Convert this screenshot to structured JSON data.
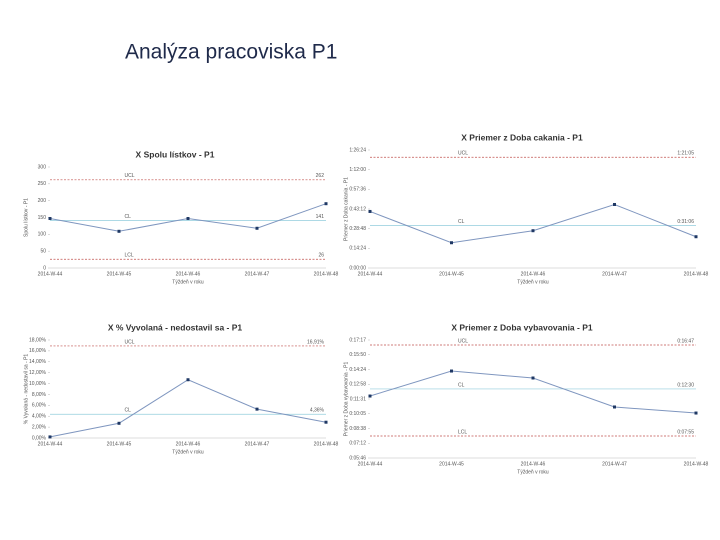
{
  "title": "Analýza pracoviska P1",
  "chart_data": [
    {
      "type": "line",
      "title": "X Spolu lístkov - P1",
      "x_label": "Týždeň v roku",
      "y_label": "Spolu lístkov - P1",
      "categories": [
        "2014-W-44",
        "2014-W-45",
        "2014-W-46",
        "2014-W-47",
        "2014-W-48"
      ],
      "values": [
        147,
        109,
        147,
        118,
        191
      ],
      "color": "#7f96bf",
      "marker_color": "#1f3864",
      "ylim": [
        0,
        300
      ],
      "yticks": [
        0,
        50,
        100,
        150,
        200,
        250,
        300
      ],
      "limits": [
        {
          "label": "UCL",
          "value": 262,
          "value_label": "262",
          "color": "#c0504d"
        },
        {
          "label": "CL",
          "value": 141,
          "value_label": "141",
          "color": "#92cddc"
        },
        {
          "label": "LCL",
          "value": 26,
          "value_label": "26",
          "color": "#c0504d"
        }
      ]
    },
    {
      "type": "line",
      "title": "X Priemer z Doba cakania - P1",
      "x_label": "Týždeň v roku",
      "y_label": "Priemer z Doba cakania - P1",
      "categories": [
        "2014-W-44",
        "2014-W-45",
        "2014-W-46",
        "2014-W-47",
        "2014-W-48"
      ],
      "values": [
        41.4,
        18.5,
        27.3,
        46.5,
        22.9
      ],
      "color": "#7f96bf",
      "marker_color": "#1f3864",
      "ylim": [
        0,
        86.4
      ],
      "yticks": [
        {
          "value": 0,
          "label": "0:00:00"
        },
        {
          "value": 14.4,
          "label": "0:14:24"
        },
        {
          "value": 28.8,
          "label": "0:28:48"
        },
        {
          "value": 43.2,
          "label": "0:43:12"
        },
        {
          "value": 57.6,
          "label": "0:57:36"
        },
        {
          "value": 72,
          "label": "1:12:00"
        },
        {
          "value": 86.4,
          "label": "1:26:24"
        }
      ],
      "limits": [
        {
          "label": "UCL",
          "value": 81.08,
          "value_label": "1:21:05",
          "color": "#c0504d"
        },
        {
          "label": "CL",
          "value": 31.1,
          "value_label": "0:31:06",
          "color": "#92cddc"
        }
      ]
    },
    {
      "type": "line",
      "title": "X % Vyvolaná - nedostavil sa - P1",
      "x_label": "Týždeň v roku",
      "y_label": "% Vyvolaná - nedostavil sa - P1",
      "categories": [
        "2014-W-44",
        "2014-W-45",
        "2014-W-46",
        "2014-W-47",
        "2014-W-48"
      ],
      "values": [
        0.2,
        2.7,
        10.7,
        5.3,
        2.9
      ],
      "color": "#7f96bf",
      "marker_color": "#1f3864",
      "ylim": [
        0,
        18
      ],
      "yticks": [
        {
          "value": 0,
          "label": "0,00%"
        },
        {
          "value": 2,
          "label": "2,00%"
        },
        {
          "value": 4,
          "label": "4,00%"
        },
        {
          "value": 6,
          "label": "6,00%"
        },
        {
          "value": 8,
          "label": "8,00%"
        },
        {
          "value": 10,
          "label": "10,00%"
        },
        {
          "value": 12,
          "label": "12,00%"
        },
        {
          "value": 14,
          "label": "14,00%"
        },
        {
          "value": 16,
          "label": "16,00%"
        },
        {
          "value": 18,
          "label": "18,00%"
        }
      ],
      "limits": [
        {
          "label": "UCL",
          "value": 16.91,
          "value_label": "16,91%",
          "color": "#c0504d"
        },
        {
          "label": "CL",
          "value": 4.36,
          "value_label": "4,36%",
          "color": "#92cddc"
        }
      ]
    },
    {
      "type": "line",
      "title": "X Priemer z Doba vybavovania - P1",
      "x_label": "Týždeň v roku",
      "y_label": "Priemer z Doba vybavovania - P1",
      "categories": [
        "2014-W-44",
        "2014-W-45",
        "2014-W-46",
        "2014-W-47",
        "2014-W-48"
      ],
      "values": [
        11.81,
        14.25,
        13.57,
        10.74,
        10.15
      ],
      "color": "#7f96bf",
      "marker_color": "#1f3864",
      "ylim": [
        5.76,
        17.28
      ],
      "yticks": [
        {
          "value": 5.76,
          "label": "0:05:46"
        },
        {
          "value": 7.2,
          "label": "0:07:12"
        },
        {
          "value": 8.64,
          "label": "0:08:38"
        },
        {
          "value": 10.08,
          "label": "0:10:05"
        },
        {
          "value": 11.52,
          "label": "0:11:31"
        },
        {
          "value": 12.96,
          "label": "0:12:58"
        },
        {
          "value": 14.4,
          "label": "0:14:24"
        },
        {
          "value": 15.84,
          "label": "0:15:50"
        },
        {
          "value": 17.28,
          "label": "0:17:17"
        }
      ],
      "limits": [
        {
          "label": "UCL",
          "value": 16.79,
          "value_label": "0:16:47",
          "color": "#c0504d"
        },
        {
          "label": "CL",
          "value": 12.5,
          "value_label": "0:12:30",
          "color": "#92cddc"
        },
        {
          "label": "LCL",
          "value": 7.91,
          "value_label": "0:07:55",
          "color": "#c0504d"
        }
      ]
    }
  ]
}
